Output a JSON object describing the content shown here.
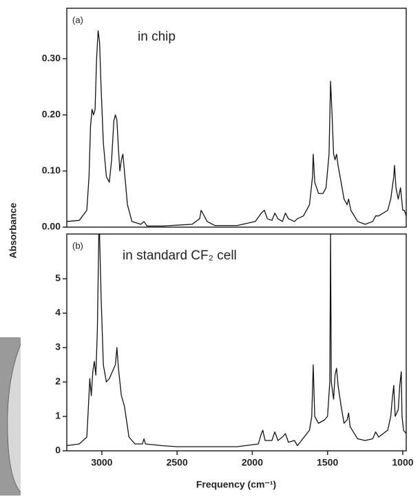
{
  "chart_data": [
    {
      "type": "line",
      "panel_label": "(a)",
      "annotation": "in chip",
      "y_label": "Absorbance",
      "color": "#111111",
      "x": [
        3233,
        3150,
        3100,
        3085,
        3075,
        3065,
        3055,
        3045,
        3035,
        3025,
        3015,
        3005,
        2990,
        2970,
        2950,
        2935,
        2920,
        2910,
        2900,
        2890,
        2880,
        2870,
        2860,
        2850,
        2830,
        2800,
        2740,
        2720,
        2700,
        2600,
        2400,
        2350,
        2340,
        2320,
        2300,
        2250,
        2100,
        1980,
        1940,
        1920,
        1900,
        1870,
        1850,
        1830,
        1800,
        1780,
        1760,
        1720,
        1700,
        1660,
        1620,
        1600,
        1595,
        1585,
        1560,
        1530,
        1510,
        1490,
        1480,
        1470,
        1460,
        1450,
        1440,
        1430,
        1410,
        1390,
        1370,
        1360,
        1345,
        1300,
        1250,
        1200,
        1180,
        1160,
        1100,
        1080,
        1060,
        1055,
        1045,
        1030,
        1015,
        1000,
        990,
        977
      ],
      "values": [
        0.01,
        0.012,
        0.03,
        0.09,
        0.18,
        0.21,
        0.2,
        0.21,
        0.3,
        0.35,
        0.33,
        0.25,
        0.15,
        0.09,
        0.08,
        0.12,
        0.19,
        0.2,
        0.19,
        0.14,
        0.1,
        0.12,
        0.13,
        0.1,
        0.04,
        0.01,
        0.005,
        0.01,
        0.002,
        0.002,
        0.005,
        0.015,
        0.03,
        0.02,
        0.01,
        0.003,
        0.003,
        0.01,
        0.025,
        0.03,
        0.015,
        0.012,
        0.025,
        0.015,
        0.01,
        0.025,
        0.015,
        0.01,
        0.015,
        0.02,
        0.04,
        0.09,
        0.13,
        0.08,
        0.06,
        0.06,
        0.07,
        0.13,
        0.26,
        0.2,
        0.13,
        0.12,
        0.13,
        0.11,
        0.08,
        0.05,
        0.04,
        0.05,
        0.03,
        0.01,
        0.005,
        0.01,
        0.02,
        0.02,
        0.03,
        0.05,
        0.09,
        0.11,
        0.07,
        0.05,
        0.07,
        0.03,
        0.03,
        0.02
      ],
      "xlim": [
        3233,
        977
      ],
      "ylim": [
        0,
        0.39
      ],
      "yticks": [
        {
          "value": 0,
          "label": "0.00"
        },
        {
          "value": 0.1,
          "label": "0.10"
        },
        {
          "value": 0.2,
          "label": "0.20"
        },
        {
          "value": 0.3,
          "label": "0.30"
        }
      ]
    },
    {
      "type": "line",
      "panel_label": "(b)",
      "annotation": "in standard CF₂ cell",
      "x_label": "Frequency (cm⁻¹)",
      "color": "#111111",
      "x": [
        3233,
        3150,
        3100,
        3090,
        3080,
        3070,
        3060,
        3050,
        3040,
        3030,
        3020,
        3015,
        3005,
        2990,
        2970,
        2950,
        2930,
        2910,
        2900,
        2890,
        2870,
        2850,
        2840,
        2820,
        2780,
        2730,
        2720,
        2710,
        2600,
        2500,
        2300,
        2100,
        1960,
        1940,
        1930,
        1915,
        1870,
        1850,
        1830,
        1800,
        1780,
        1760,
        1720,
        1700,
        1620,
        1605,
        1595,
        1585,
        1560,
        1520,
        1500,
        1485,
        1480,
        1475,
        1460,
        1450,
        1440,
        1430,
        1410,
        1390,
        1370,
        1360,
        1350,
        1300,
        1250,
        1200,
        1180,
        1160,
        1100,
        1080,
        1070,
        1060,
        1050,
        1030,
        1020,
        1010,
        1005,
        995,
        977
      ],
      "values": [
        0.15,
        0.2,
        0.4,
        1.2,
        2.1,
        1.6,
        2.3,
        2.6,
        2.2,
        3.5,
        6.3,
        6.3,
        4.5,
        2.5,
        2.0,
        2.1,
        2.3,
        2.5,
        3.0,
        2.4,
        1.6,
        1.3,
        1.0,
        0.4,
        0.2,
        0.2,
        0.35,
        0.2,
        0.15,
        0.12,
        0.12,
        0.12,
        0.2,
        0.5,
        0.6,
        0.3,
        0.3,
        0.55,
        0.3,
        0.4,
        0.5,
        0.25,
        0.3,
        0.15,
        0.6,
        1.0,
        2.5,
        1.0,
        0.8,
        0.9,
        1.0,
        2.0,
        6.3,
        2.0,
        1.5,
        2.2,
        2.4,
        1.9,
        1.3,
        0.8,
        0.9,
        1.1,
        0.7,
        0.35,
        0.3,
        0.35,
        0.55,
        0.4,
        0.6,
        1.0,
        1.5,
        1.9,
        1.0,
        1.2,
        1.9,
        2.3,
        1.0,
        0.6,
        0.5
      ],
      "xlim": [
        3233,
        977
      ],
      "ylim": [
        0,
        6.3
      ],
      "yticks": [
        0,
        1,
        2,
        3,
        4,
        5
      ],
      "xticks": [
        3000,
        2500,
        2000,
        1500,
        1000
      ]
    }
  ]
}
